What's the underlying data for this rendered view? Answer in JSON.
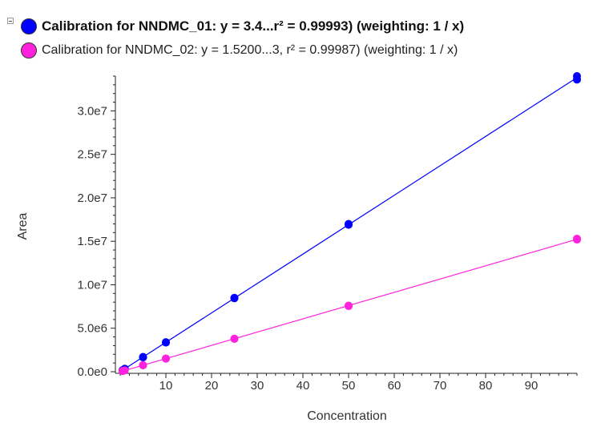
{
  "legend": {
    "items": [
      {
        "label": "Calibration for NNDMC_01: y = 3.4...r² = 0.99993)  (weighting: 1 / x)",
        "color": "#0000ff"
      },
      {
        "label": "Calibration for NNDMC_02: y = 1.5200...3, r² = 0.99987)  (weighting: 1 / x)",
        "color": "#ff22dd"
      }
    ]
  },
  "chart_data": {
    "type": "scatter",
    "xlabel": "Concentration",
    "ylabel": "Area",
    "xlim": [
      0,
      100
    ],
    "ylim": [
      0,
      34000000
    ],
    "x_ticks": [
      10,
      20,
      30,
      40,
      50,
      60,
      70,
      80,
      90
    ],
    "x_tick_labels": [
      "10",
      "20",
      "30",
      "40",
      "50",
      "60",
      "70",
      "80",
      "90"
    ],
    "y_ticks": [
      0,
      5000000,
      10000000,
      15000000,
      20000000,
      25000000,
      30000000
    ],
    "y_tick_labels": [
      "0.0e0",
      "5.0e6",
      "1.0e7",
      "1.5e7",
      "2.0e7",
      "2.5e7",
      "3.0e7"
    ],
    "grid": false,
    "legend_position": "top-left",
    "series": [
      {
        "name": "Calibration for NNDMC_01",
        "color": "#0000ff",
        "fit": "linear",
        "points": [
          [
            0.5,
            170000
          ],
          [
            1,
            340000
          ],
          [
            1,
            300000
          ],
          [
            5,
            1700000
          ],
          [
            5,
            1650000
          ],
          [
            10,
            3400000
          ],
          [
            10,
            3350000
          ],
          [
            25,
            8500000
          ],
          [
            25,
            8450000
          ],
          [
            50,
            17000000
          ],
          [
            50,
            16900000
          ],
          [
            100,
            34000000
          ],
          [
            100,
            33600000
          ]
        ]
      },
      {
        "name": "Calibration for NNDMC_02",
        "color": "#ff22dd",
        "fit": "linear",
        "points": [
          [
            0.5,
            76000
          ],
          [
            1,
            152000
          ],
          [
            5,
            760000
          ],
          [
            5,
            740000
          ],
          [
            10,
            1520000
          ],
          [
            10,
            1500000
          ],
          [
            25,
            3800000
          ],
          [
            25,
            3780000
          ],
          [
            50,
            7600000
          ],
          [
            50,
            7550000
          ],
          [
            100,
            15300000
          ],
          [
            100,
            15200000
          ]
        ]
      }
    ]
  }
}
